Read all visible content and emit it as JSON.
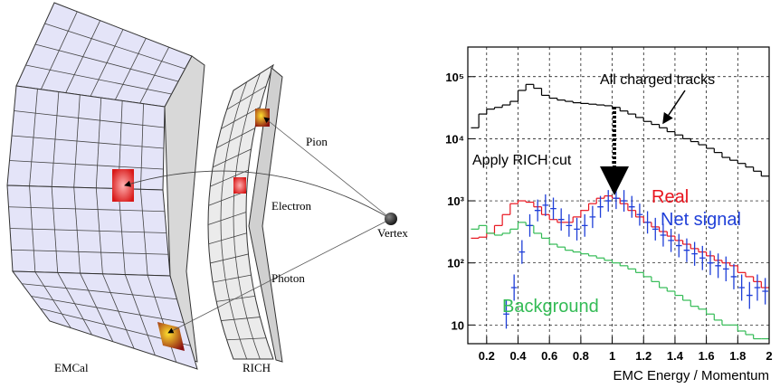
{
  "diagram": {
    "labels": {
      "pion": "Pion",
      "electron": "Electron",
      "photon": "Photon",
      "vertex": "Vertex",
      "emcal": "EMCal",
      "rich": "RICH"
    }
  },
  "chart_data": {
    "type": "histogram",
    "x_label": "EMC Energy / Momentum",
    "annotations": {
      "all": "All charged tracks",
      "cut": "Apply RICH cut"
    },
    "bins": [
      0.1,
      0.15,
      0.2,
      0.25,
      0.3,
      0.35,
      0.4,
      0.45,
      0.5,
      0.55,
      0.6,
      0.65,
      0.7,
      0.75,
      0.8,
      0.85,
      0.9,
      0.95,
      1.0,
      1.05,
      1.1,
      1.15,
      1.2,
      1.25,
      1.3,
      1.35,
      1.4,
      1.45,
      1.5,
      1.55,
      1.6,
      1.65,
      1.7,
      1.75,
      1.8,
      1.85,
      1.9,
      1.95,
      2.0
    ],
    "series": [
      {
        "color": "#000000",
        "style": "step",
        "values": [
          15000,
          25000,
          30000,
          32000,
          35000,
          40000,
          60000,
          75000,
          65000,
          50000,
          45000,
          42000,
          40000,
          38000,
          37000,
          36000,
          35000,
          34000,
          32000,
          28000,
          25000,
          22000,
          19000,
          17000,
          15000,
          13000,
          11500,
          10000,
          9000,
          8000,
          7000,
          6000,
          5000,
          4500,
          4000,
          3500,
          3000,
          2500
        ]
      },
      {
        "name": "Real",
        "color": "#e8141e",
        "style": "step",
        "values": [
          250,
          260,
          300,
          400,
          600,
          900,
          1000,
          950,
          800,
          600,
          500,
          450,
          450,
          550,
          700,
          900,
          1100,
          1200,
          1100,
          900,
          700,
          550,
          450,
          380,
          320,
          270,
          230,
          200,
          170,
          150,
          130,
          110,
          100,
          90,
          70,
          60,
          50,
          40
        ]
      },
      {
        "name": "Background",
        "color": "#33bb55",
        "style": "step",
        "values": [
          350,
          400,
          300,
          280,
          300,
          350,
          450,
          400,
          300,
          250,
          200,
          180,
          160,
          150,
          140,
          130,
          120,
          110,
          100,
          90,
          80,
          70,
          60,
          50,
          40,
          35,
          30,
          25,
          20,
          18,
          15,
          12,
          10,
          10,
          8,
          7,
          6,
          6
        ]
      },
      {
        "name": "Net signal",
        "color": "#1f3fd8",
        "style": "cross",
        "values": [
          null,
          null,
          null,
          null,
          15,
          40,
          150,
          400,
          700,
          850,
          750,
          500,
          400,
          350,
          400,
          550,
          800,
          1000,
          1100,
          1000,
          800,
          600,
          450,
          350,
          280,
          230,
          190,
          160,
          140,
          120,
          100,
          90,
          80,
          60,
          40,
          30,
          40,
          35
        ]
      }
    ],
    "xlim": [
      0.08,
      2.0
    ],
    "xticks": [
      0.2,
      0.4,
      0.6,
      0.8,
      1,
      1.2,
      1.4,
      1.6,
      1.8,
      2
    ],
    "ylim": [
      5,
      300000
    ],
    "log_y": true,
    "yticks": [
      10,
      {
        "value": 100,
        "label": "10²"
      },
      {
        "value": 1000,
        "label": "10³"
      },
      {
        "value": 10000,
        "label": "10⁴"
      },
      {
        "value": 100000,
        "label": "10⁵"
      }
    ],
    "grid": true
  }
}
